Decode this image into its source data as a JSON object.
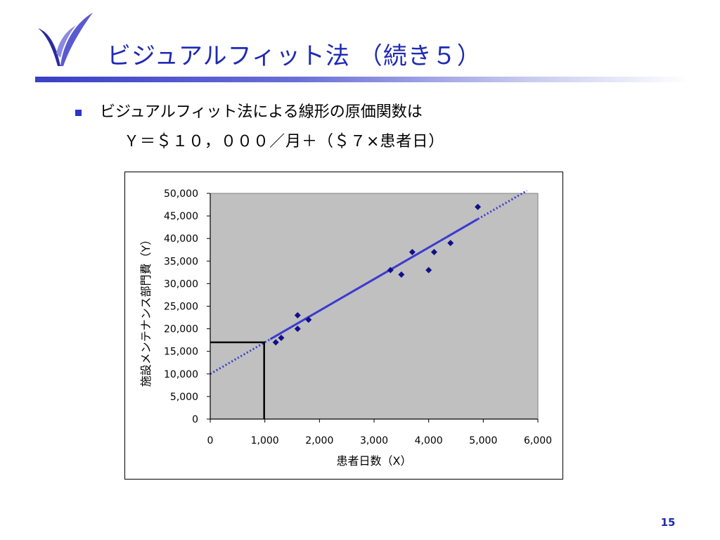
{
  "slide": {
    "title": "ビジュアルフィット法 （続き５）",
    "bullet_text": "ビジュアルフィット法による線形の原価関数は",
    "formula": "Ｙ＝＄１０，０００／月＋（＄７×患者日）",
    "page_number": "15"
  },
  "colors": {
    "title": "#1f2ab4",
    "plot_background": "#c0c0c0",
    "marker": "#10108a",
    "fit_line": "#3b3bd0",
    "guide_line": "#000000"
  },
  "chart_data": {
    "type": "scatter",
    "xlabel": "患者日数（X）",
    "ylabel": "施設メンテナンス部門費（Y）",
    "xlim": [
      0,
      6000
    ],
    "ylim": [
      0,
      50000
    ],
    "x_ticks": [
      0,
      1000,
      2000,
      3000,
      4000,
      5000,
      6000
    ],
    "x_tick_labels": [
      "0",
      "1,000",
      "2,000",
      "3,000",
      "4,000",
      "5,000",
      "6,000"
    ],
    "y_ticks": [
      0,
      5000,
      10000,
      15000,
      20000,
      25000,
      30000,
      35000,
      40000,
      45000,
      50000
    ],
    "y_tick_labels": [
      "0",
      "5,000",
      "10,000",
      "15,000",
      "20,000",
      "25,000",
      "30,000",
      "35,000",
      "40,000",
      "45,000",
      "50,000"
    ],
    "grid": false,
    "points": [
      {
        "x": 1200,
        "y": 17000
      },
      {
        "x": 1300,
        "y": 18000
      },
      {
        "x": 1600,
        "y": 20000
      },
      {
        "x": 1600,
        "y": 23000
      },
      {
        "x": 1800,
        "y": 22000
      },
      {
        "x": 3300,
        "y": 33000
      },
      {
        "x": 3500,
        "y": 32000
      },
      {
        "x": 3700,
        "y": 37000
      },
      {
        "x": 4000,
        "y": 33000
      },
      {
        "x": 4100,
        "y": 37000
      },
      {
        "x": 4400,
        "y": 39000
      },
      {
        "x": 4900,
        "y": 47000
      }
    ],
    "fit_line": {
      "intercept": 10000,
      "slope": 7,
      "solid_range": [
        1100,
        4900
      ],
      "dotted_range": [
        0,
        5800
      ]
    },
    "guide": {
      "x": 1000,
      "y": 17000
    }
  }
}
